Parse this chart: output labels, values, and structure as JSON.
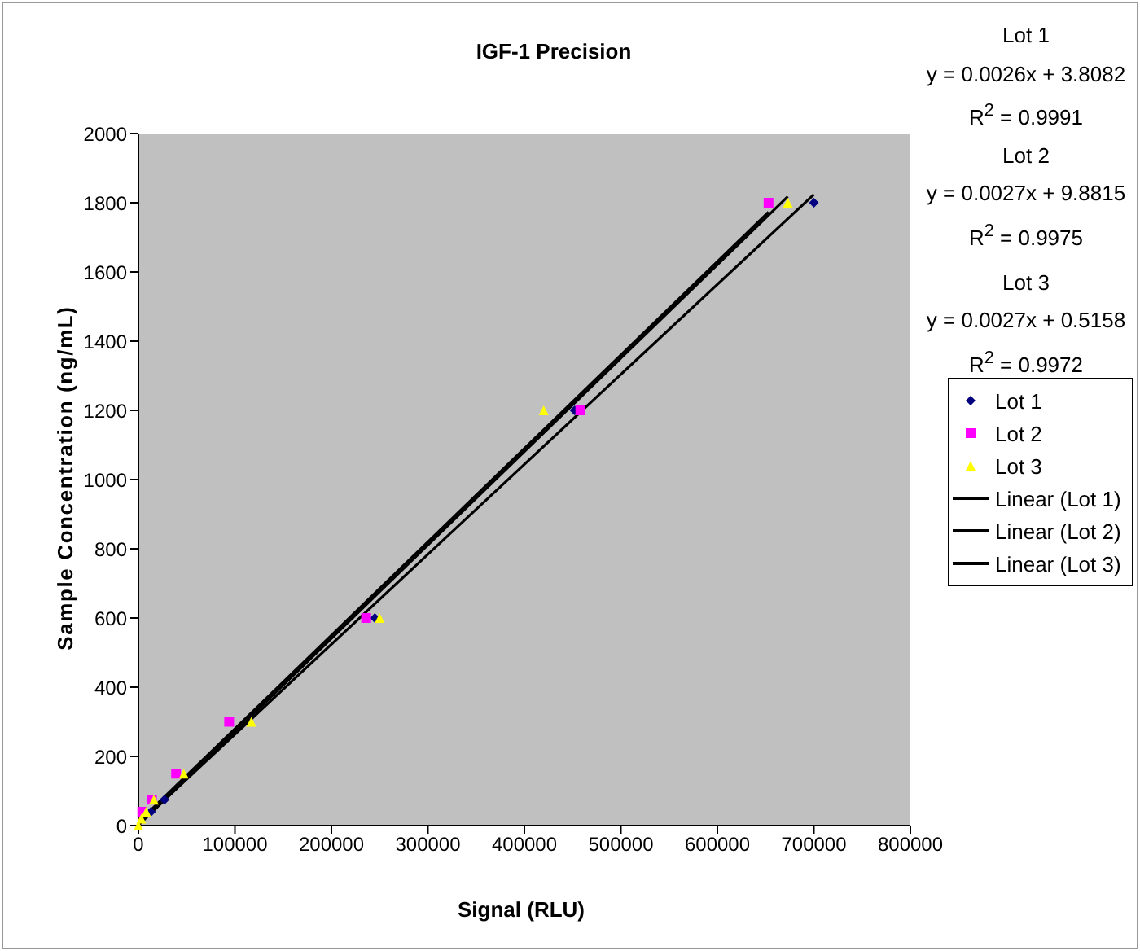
{
  "chart_data": {
    "type": "scatter",
    "title": "IGF-1 Precision",
    "xlabel": "Signal (RLU)",
    "ylabel": "Sample Concentration (ng/mL)",
    "xlim": [
      0,
      800000
    ],
    "xticks": [
      0,
      100000,
      200000,
      300000,
      400000,
      500000,
      600000,
      700000,
      800000
    ],
    "ylim": [
      0,
      2000
    ],
    "yticks": [
      0,
      200,
      400,
      600,
      800,
      1000,
      1200,
      1400,
      1600,
      1800,
      2000
    ],
    "grid": false,
    "legend": "right",
    "annotations": [
      "Lot 1",
      "y = 0.0026x + 3.8082",
      "R$^{2}$ = 0.9991",
      "Lot 2",
      "y = 0.0027x + 9.8815",
      "R$^{2}$ = 0.9975",
      "Lot 3",
      "y = 0.0027x + 0.5158",
      "R$^{2}$ = 0.9972"
    ],
    "series": [
      {
        "name": "Lot 1",
        "marker": "diamond",
        "color": "#000080",
        "x": [
          13000,
          27000,
          245000,
          452000,
          700000
        ],
        "values": [
          40,
          75,
          600,
          1200,
          1800
        ]
      },
      {
        "name": "Lot 2",
        "marker": "square",
        "color": "#ff00ff",
        "x": [
          4000,
          14000,
          39000,
          94000,
          236000,
          458000,
          653000
        ],
        "values": [
          40,
          75,
          150,
          300,
          600,
          1200,
          1800
        ]
      },
      {
        "name": "Lot 3",
        "marker": "triangle",
        "color": "#ffff00",
        "x": [
          0,
          3000,
          8000,
          16000,
          47000,
          117000,
          250000,
          420000,
          673000
        ],
        "values": [
          0,
          20,
          40,
          75,
          150,
          300,
          600,
          1200,
          1800
        ]
      },
      {
        "name": "Linear (Lot 1)",
        "type": "line",
        "line_style": "solid",
        "marker": "none",
        "color": "#000000",
        "x": [
          0,
          700000
        ],
        "values": [
          4,
          1824
        ]
      },
      {
        "name": "Linear (Lot 2)",
        "type": "line",
        "line_style": "solid",
        "marker": "none",
        "color": "#000000",
        "x": [
          0,
          653000
        ],
        "values": [
          10,
          1773
        ]
      },
      {
        "name": "Linear (Lot 3)",
        "type": "line",
        "line_style": "solid",
        "marker": "none",
        "color": "#000000",
        "x": [
          0,
          673000
        ],
        "values": [
          1,
          1818
        ]
      }
    ]
  }
}
